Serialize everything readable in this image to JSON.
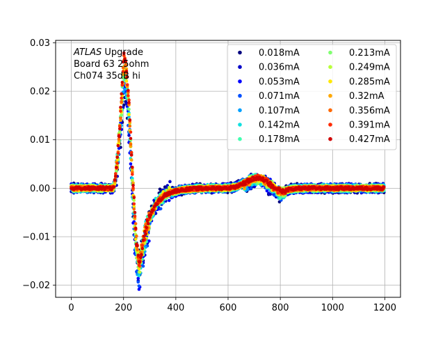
{
  "chart_data": {
    "type": "scatter",
    "title": "",
    "xlabel": "",
    "ylabel": "",
    "xlim": [
      -60,
      1260
    ],
    "ylim": [
      -0.0225,
      0.0305
    ],
    "xticks": [
      0,
      200,
      400,
      600,
      800,
      1000,
      1200
    ],
    "yticks": [
      -0.02,
      -0.01,
      0.0,
      0.01,
      0.02,
      0.03
    ],
    "xtick_labels": [
      "0",
      "200",
      "400",
      "600",
      "800",
      "1000",
      "1200"
    ],
    "ytick_labels": [
      "−0.02",
      "−0.01",
      "0.00",
      "0.01",
      "0.02",
      "0.03"
    ],
    "grid": true,
    "legend_placement": "top-right",
    "legend_columns": 2,
    "annotation": {
      "line1_italic": "ATLAS",
      "line1_rest": " Upgrade",
      "line2": " Board 63 25ohm",
      "line3": " Ch074 35dB hi"
    },
    "series": [
      {
        "name": "0.018mA",
        "color": "#00007f",
        "peak": 0.0205,
        "under": -0.016
      },
      {
        "name": "0.036mA",
        "color": "#0000c8",
        "peak": 0.0215,
        "under": -0.018
      },
      {
        "name": "0.053mA",
        "color": "#0000ff",
        "peak": 0.022,
        "under": -0.0195
      },
      {
        "name": "0.071mA",
        "color": "#0050ff",
        "peak": 0.0225,
        "under": -0.019
      },
      {
        "name": "0.107mA",
        "color": "#00a0ff",
        "peak": 0.023,
        "under": -0.0175
      },
      {
        "name": "0.142mA",
        "color": "#10e0e0",
        "peak": 0.0235,
        "under": -0.016
      },
      {
        "name": "0.178mA",
        "color": "#40ffb0",
        "peak": 0.024,
        "under": -0.016
      },
      {
        "name": "0.213mA",
        "color": "#80ff70",
        "peak": 0.0245,
        "under": -0.0165
      },
      {
        "name": "0.249mA",
        "color": "#b8ff3a",
        "peak": 0.025,
        "under": -0.016
      },
      {
        "name": "0.285mA",
        "color": "#ffe800",
        "peak": 0.0255,
        "under": -0.0155
      },
      {
        "name": "0.32mA",
        "color": "#ffa800",
        "peak": 0.026,
        "under": -0.015
      },
      {
        "name": "0.356mA",
        "color": "#ff6800",
        "peak": 0.0265,
        "under": -0.015
      },
      {
        "name": "0.391mA",
        "color": "#ff2a00",
        "peak": 0.0272,
        "under": -0.015
      },
      {
        "name": "0.427mA",
        "color": "#d00000",
        "peak": 0.028,
        "under": -0.015
      }
    ]
  }
}
